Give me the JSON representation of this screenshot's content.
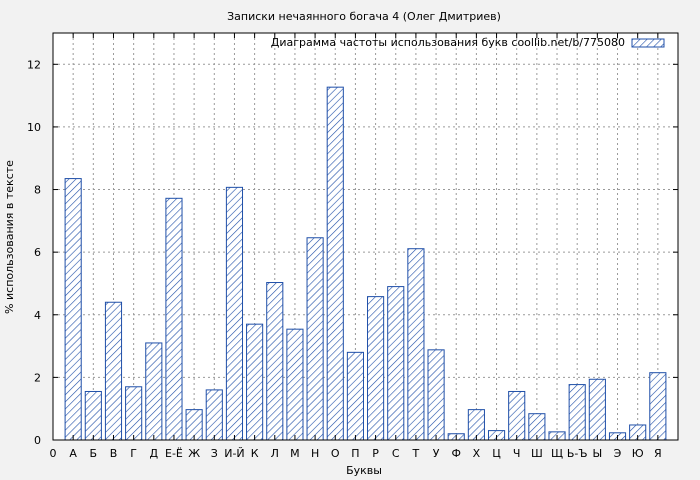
{
  "chart_data": {
    "type": "bar",
    "title": "Записки нечаянного богача 4 (Олег Дмитриев)",
    "xlabel": "Буквы",
    "ylabel": "% использования в тексте",
    "legend": "Диаграмма частоты использования букв coollib.net/b/775080",
    "legend_position": "top-right",
    "grid": true,
    "ylim": [
      0,
      13
    ],
    "yticks": [
      0,
      2,
      4,
      6,
      8,
      10,
      12
    ],
    "x_start_label": "0",
    "categories": [
      "А",
      "Б",
      "В",
      "Г",
      "Д",
      "Е-Ё",
      "Ж",
      "З",
      "И-Й",
      "К",
      "Л",
      "М",
      "Н",
      "О",
      "П",
      "Р",
      "С",
      "Т",
      "У",
      "Ф",
      "Х",
      "Ц",
      "Ч",
      "Ш",
      "Щ",
      "Ь-Ъ",
      "Ы",
      "Э",
      "Ю",
      "Я"
    ],
    "values": [
      8.35,
      1.55,
      4.4,
      1.7,
      3.1,
      7.72,
      0.97,
      1.6,
      8.07,
      3.7,
      5.03,
      3.54,
      6.46,
      11.27,
      2.8,
      4.58,
      4.9,
      6.11,
      2.88,
      0.2,
      0.97,
      0.3,
      1.55,
      0.84,
      0.26,
      1.77,
      1.94,
      0.23,
      0.48,
      2.15
    ],
    "bar_color": "#1f4fa8"
  }
}
